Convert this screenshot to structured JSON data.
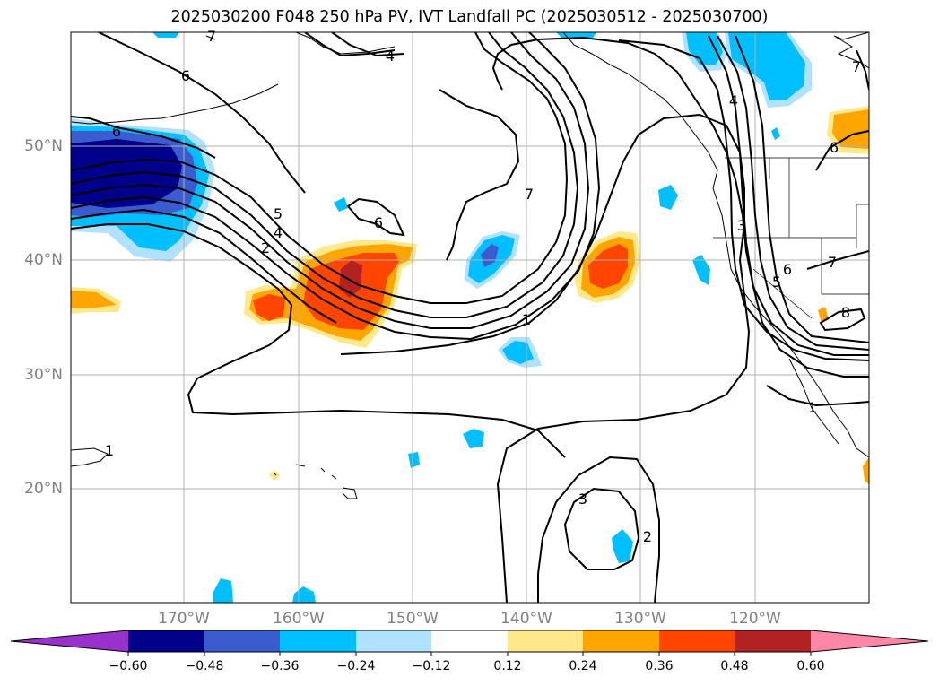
{
  "title": "2025030200 F048 250 hPa PV, IVT Landfall PC (2025030512 - 2025030700)",
  "map": {
    "projection": "Plate Carree",
    "extent": {
      "lon": [
        -180,
        -110
      ],
      "lat": [
        10,
        60
      ]
    },
    "gridlines": true,
    "coastlines": true,
    "latitude_labels": [
      "20°N",
      "30°N",
      "40°N",
      "50°N"
    ],
    "longitude_labels": [
      "170°W",
      "160°W",
      "150°W",
      "140°W",
      "130°W",
      "120°W"
    ],
    "contour_labels": [
      "6",
      "6",
      "4",
      "6",
      "5",
      "4",
      "2",
      "7",
      "1",
      "3",
      "2",
      "3",
      "4",
      "7",
      "5",
      "6",
      "7",
      "8",
      "6",
      "7",
      "1",
      "1"
    ]
  },
  "colorbar": {
    "ticks": [
      "−0.60",
      "−0.48",
      "−0.36",
      "−0.24",
      "−0.12",
      "0.12",
      "0.24",
      "0.36",
      "0.48",
      "0.60"
    ],
    "colors": [
      "#9932cc",
      "#00008b",
      "#3a5ccf",
      "#00bfff",
      "#b0e2ff",
      "#ffffff",
      "#ffe88a",
      "#ffa500",
      "#ff4500",
      "#b22222",
      "#ff87a6"
    ],
    "extend": "both"
  }
}
